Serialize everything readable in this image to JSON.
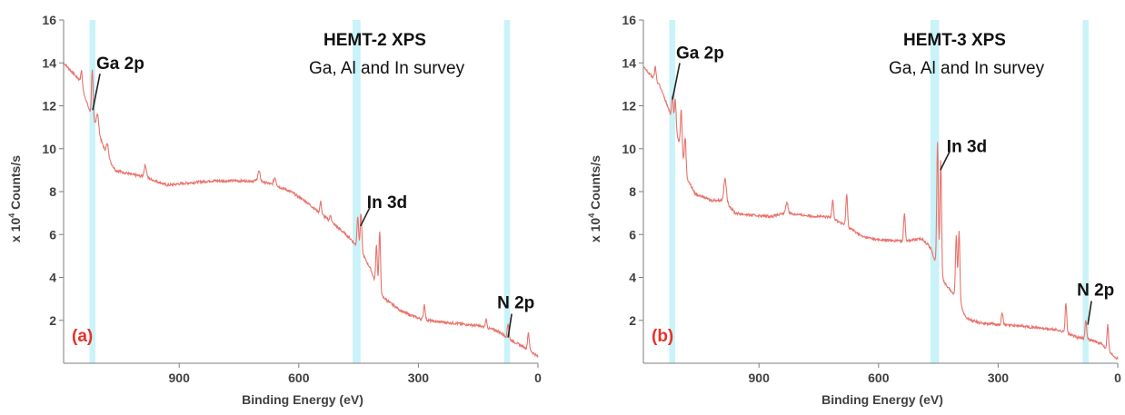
{
  "colors": {
    "spectrum": "#e8736c",
    "band": "#c9f3f8",
    "axis": "#7f7f7f",
    "panel_label": "#e8302a",
    "leader": "#222222"
  },
  "chart_data": [
    {
      "type": "line",
      "panel_label": "(a)",
      "title": "HEMT-2 XPS",
      "subtitle": "Ga, Al and In survey",
      "xlabel": "Binding Energy (eV)",
      "ylabel_prefix": "x 10",
      "ylabel_exp": "4",
      "ylabel_suffix": " Counts/s",
      "xlim": [
        1190,
        0
      ],
      "ylim": [
        0,
        16
      ],
      "xticks": [
        900,
        600,
        300,
        0
      ],
      "yticks": [
        2,
        4,
        6,
        8,
        10,
        12,
        14,
        16
      ],
      "bands": [
        [
          1125,
          1110
        ],
        [
          465,
          445
        ],
        [
          85,
          70
        ]
      ],
      "peak_labels": [
        {
          "text": "Ga 2p",
          "x": 1117,
          "y": 11.8
        },
        {
          "text": "In 3d",
          "x": 445,
          "y": 6.4
        },
        {
          "text": "N 2p",
          "x": 75,
          "y": 1.2
        }
      ],
      "background": [
        [
          1190,
          14.0
        ],
        [
          1150,
          13.2
        ],
        [
          1120,
          11.5
        ],
        [
          1100,
          10.6
        ],
        [
          1080,
          9.6
        ],
        [
          1060,
          9.0
        ],
        [
          1020,
          8.8
        ],
        [
          990,
          8.7
        ],
        [
          960,
          8.5
        ],
        [
          930,
          8.3
        ],
        [
          880,
          8.4
        ],
        [
          820,
          8.5
        ],
        [
          760,
          8.5
        ],
        [
          700,
          8.5
        ],
        [
          660,
          8.3
        ],
        [
          620,
          8.0
        ],
        [
          580,
          7.5
        ],
        [
          540,
          6.9
        ],
        [
          500,
          6.3
        ],
        [
          470,
          5.8
        ],
        [
          440,
          5.1
        ],
        [
          420,
          4.4
        ],
        [
          405,
          3.6
        ],
        [
          390,
          3.1
        ],
        [
          370,
          2.8
        ],
        [
          340,
          2.4
        ],
        [
          300,
          2.1
        ],
        [
          260,
          1.95
        ],
        [
          200,
          1.85
        ],
        [
          150,
          1.75
        ],
        [
          100,
          1.5
        ],
        [
          70,
          1.1
        ],
        [
          40,
          0.8
        ],
        [
          20,
          0.6
        ],
        [
          0,
          0.3
        ]
      ],
      "peaks": [
        {
          "x": 1145,
          "h": 0.7,
          "w": 2
        },
        {
          "x": 1118,
          "h": 2.3,
          "w": 2
        },
        {
          "x": 1105,
          "h": 0.8,
          "w": 3
        },
        {
          "x": 1080,
          "h": 0.6,
          "w": 3
        },
        {
          "x": 985,
          "h": 0.55,
          "w": 3
        },
        {
          "x": 700,
          "h": 0.45,
          "w": 3
        },
        {
          "x": 660,
          "h": 0.35,
          "w": 3
        },
        {
          "x": 545,
          "h": 0.55,
          "w": 2
        },
        {
          "x": 520,
          "h": 0.3,
          "w": 2
        },
        {
          "x": 452,
          "h": 1.5,
          "w": 2
        },
        {
          "x": 444,
          "h": 1.8,
          "w": 2
        },
        {
          "x": 405,
          "h": 1.9,
          "w": 2
        },
        {
          "x": 397,
          "h": 2.8,
          "w": 2
        },
        {
          "x": 285,
          "h": 0.7,
          "w": 2
        },
        {
          "x": 130,
          "h": 0.4,
          "w": 2
        },
        {
          "x": 75,
          "h": 0.7,
          "w": 2
        },
        {
          "x": 24,
          "h": 0.8,
          "w": 2
        }
      ]
    },
    {
      "type": "line",
      "panel_label": "(b)",
      "title": "HEMT-3 XPS",
      "subtitle": "Ga, Al and In survey",
      "xlabel": "Binding Energy (eV)",
      "ylabel_prefix": "x 10",
      "ylabel_exp": "4",
      "ylabel_suffix": " Counts/s",
      "xlim": [
        1190,
        0
      ],
      "ylim": [
        0,
        16
      ],
      "xticks": [
        900,
        600,
        300,
        0
      ],
      "yticks": [
        2,
        4,
        6,
        8,
        10,
        12,
        14,
        16
      ],
      "bands": [
        [
          1125,
          1110
        ],
        [
          470,
          448
        ],
        [
          88,
          73
        ]
      ],
      "peak_labels": [
        {
          "text": "Ga 2p",
          "x": 1117,
          "y": 12.3
        },
        {
          "text": "In 3d",
          "x": 445,
          "y": 9.0
        },
        {
          "text": "N 2p",
          "x": 75,
          "y": 1.8
        }
      ],
      "background": [
        [
          1190,
          13.8
        ],
        [
          1150,
          13.0
        ],
        [
          1120,
          11.5
        ],
        [
          1100,
          10.3
        ],
        [
          1080,
          8.6
        ],
        [
          1060,
          7.9
        ],
        [
          1020,
          7.6
        ],
        [
          985,
          7.6
        ],
        [
          960,
          7.0
        ],
        [
          920,
          6.9
        ],
        [
          870,
          6.85
        ],
        [
          830,
          7.0
        ],
        [
          790,
          6.9
        ],
        [
          720,
          6.8
        ],
        [
          680,
          6.4
        ],
        [
          640,
          5.9
        ],
        [
          600,
          5.75
        ],
        [
          540,
          5.7
        ],
        [
          490,
          5.8
        ],
        [
          470,
          5.4
        ],
        [
          455,
          4.6
        ],
        [
          440,
          3.9
        ],
        [
          420,
          3.4
        ],
        [
          400,
          3.0
        ],
        [
          380,
          2.1
        ],
        [
          350,
          1.9
        ],
        [
          300,
          1.8
        ],
        [
          250,
          1.75
        ],
        [
          200,
          1.65
        ],
        [
          150,
          1.55
        ],
        [
          100,
          1.2
        ],
        [
          70,
          1.1
        ],
        [
          40,
          0.9
        ],
        [
          20,
          0.5
        ],
        [
          0,
          0.2
        ]
      ],
      "peaks": [
        {
          "x": 1160,
          "h": 0.6,
          "w": 2
        },
        {
          "x": 1117,
          "h": 1.2,
          "w": 2
        },
        {
          "x": 1110,
          "h": 1.4,
          "w": 2
        },
        {
          "x": 1095,
          "h": 2.0,
          "w": 2
        },
        {
          "x": 1085,
          "h": 1.5,
          "w": 2
        },
        {
          "x": 985,
          "h": 1.0,
          "w": 3
        },
        {
          "x": 830,
          "h": 0.5,
          "w": 3
        },
        {
          "x": 715,
          "h": 0.9,
          "w": 2
        },
        {
          "x": 680,
          "h": 1.5,
          "w": 2
        },
        {
          "x": 535,
          "h": 1.3,
          "w": 2
        },
        {
          "x": 452,
          "h": 5.8,
          "w": 2
        },
        {
          "x": 444,
          "h": 5.4,
          "w": 2
        },
        {
          "x": 405,
          "h": 2.9,
          "w": 2
        },
        {
          "x": 398,
          "h": 3.3,
          "w": 2
        },
        {
          "x": 290,
          "h": 0.6,
          "w": 2
        },
        {
          "x": 130,
          "h": 1.4,
          "w": 2
        },
        {
          "x": 80,
          "h": 0.9,
          "w": 2
        },
        {
          "x": 25,
          "h": 1.2,
          "w": 2
        }
      ]
    }
  ]
}
